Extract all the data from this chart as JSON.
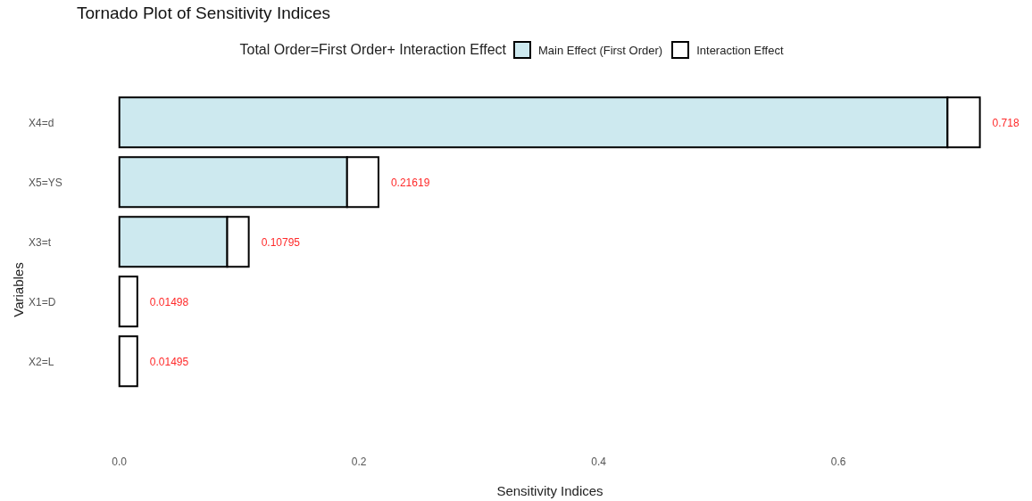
{
  "chart_data": {
    "type": "bar",
    "orientation": "horizontal",
    "stacked": true,
    "title": "Tornado Plot of Sensitivity Indices",
    "xlabel": "Sensitivity Indices",
    "ylabel": "Variables",
    "legend_title": "Total Order=First Order+ Interaction Effect",
    "legend": "top",
    "categories": [
      "X4=d",
      "X5=YS",
      "X3=t",
      "X1=D",
      "X2=L"
    ],
    "series": [
      {
        "name": "Main Effect (First Order)",
        "color": "#cde9ef",
        "values": [
          0.691,
          0.19,
          0.09,
          0,
          0
        ]
      },
      {
        "name": "Interaction Effect",
        "color": "#ffffff",
        "values": [
          0.027,
          0.02619,
          0.01795,
          0.01498,
          0.01495
        ]
      }
    ],
    "totals": [
      "0.718",
      "0.21619",
      "0.10795",
      "0.01498",
      "0.01495"
    ],
    "xlim": [
      -0.005,
      0.76
    ],
    "xticks": [
      {
        "value": 0,
        "label": "0.0"
      },
      0.2,
      0.4,
      0.6
    ]
  }
}
